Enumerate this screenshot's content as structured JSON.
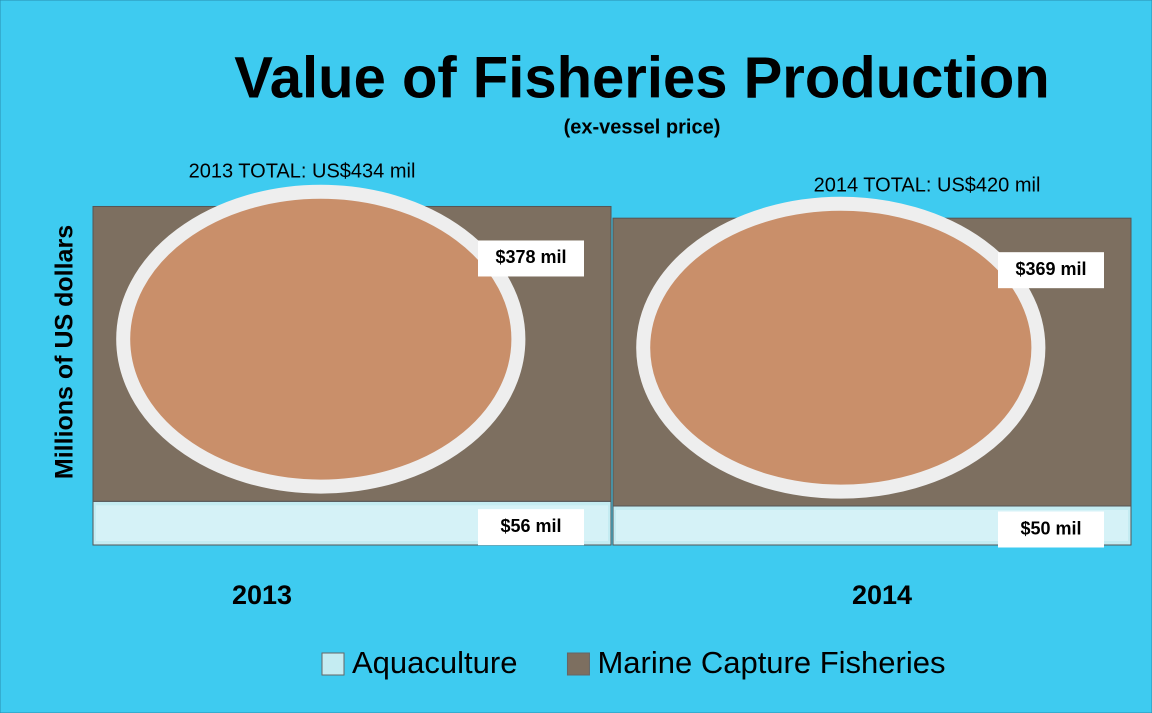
{
  "chart_data": {
    "type": "bar",
    "stacked": true,
    "title": "Value of Fisheries Production",
    "subtitle": "(ex-vessel price)",
    "y_label": "Millions of US dollars",
    "categories": [
      "2013",
      "2014"
    ],
    "annotations": [
      "2013 TOTAL: US$434 mil",
      "2014 TOTAL: US$420 mil"
    ],
    "series": [
      {
        "name": "Aquaculture",
        "color": "#c4ecf2",
        "values": [
          56,
          50
        ],
        "value_labels": [
          "$56 mil",
          "$50 mil"
        ]
      },
      {
        "name": "Marine Capture Fisheries",
        "color": "#7d6f60",
        "values": [
          378,
          369
        ],
        "value_labels": [
          "$378 mil",
          "$369 mil"
        ]
      }
    ],
    "ylim": [
      0,
      500
    ]
  }
}
